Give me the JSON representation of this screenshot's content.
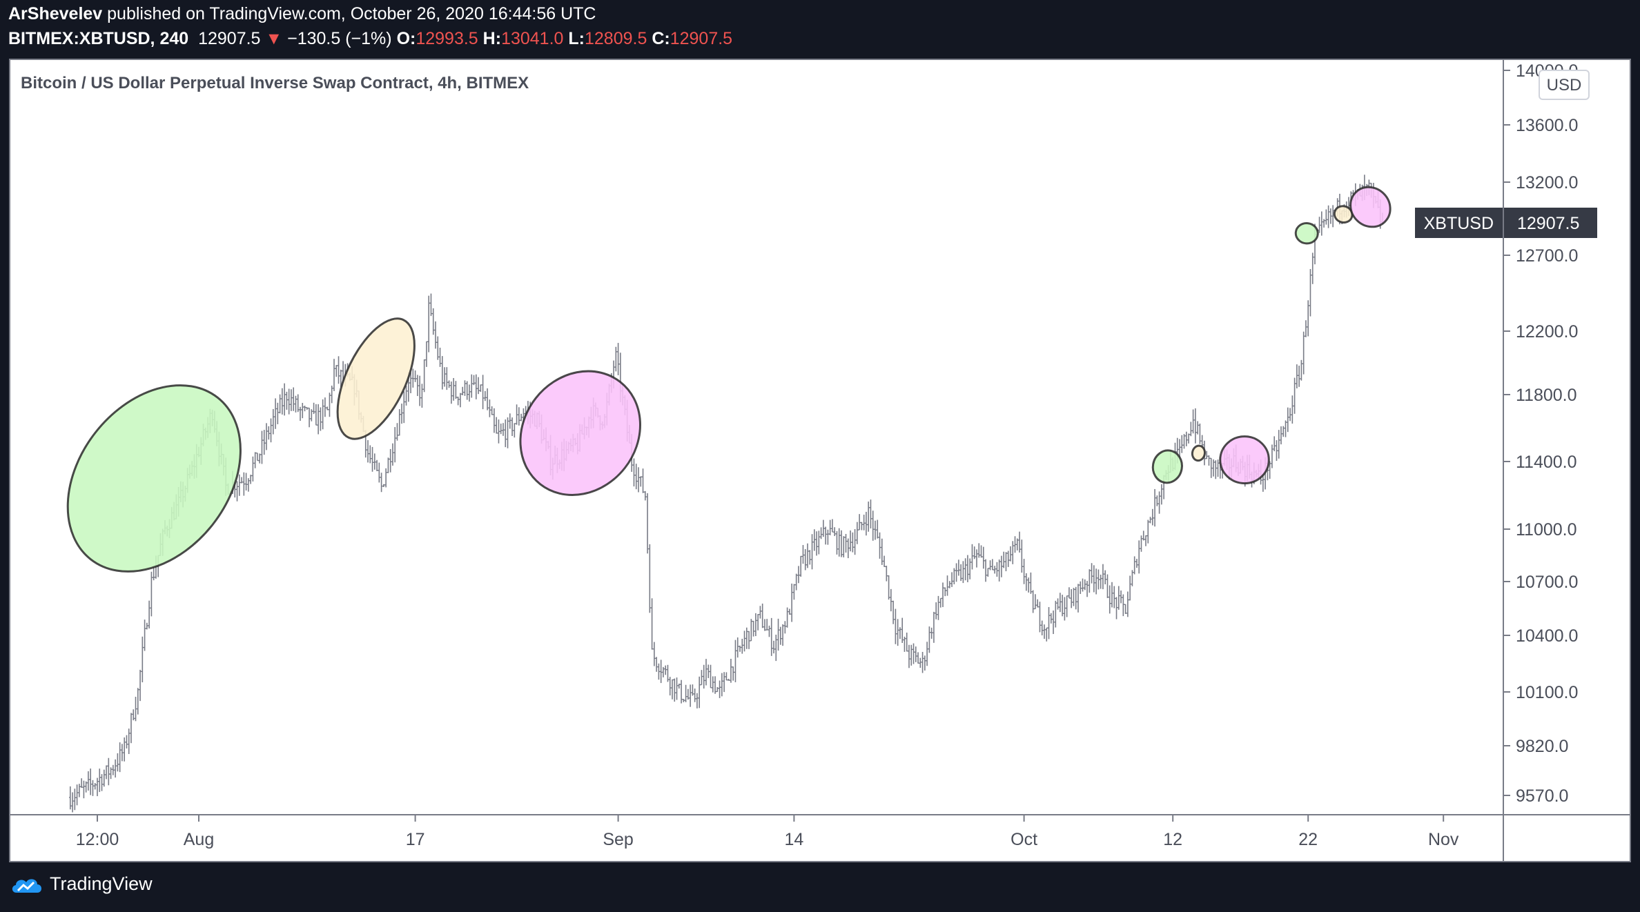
{
  "header": {
    "author": "ArShevelev",
    "published_text": "published on TradingView.com, October 26, 2020 16:44:56 UTC",
    "symbol": "BITMEX:XBTUSD, 240",
    "last": "12907.5",
    "change": "−130.5 (−1%)",
    "o_label": "O:",
    "o_value": "12993.5",
    "h_label": "H:",
    "h_value": "13041.0",
    "l_label": "L:",
    "l_value": "12809.5",
    "c_label": "C:",
    "c_value": "12907.5"
  },
  "chart_title": "Bitcoin / US Dollar Perpetual Inverse Swap Contract, 4h, BITMEX",
  "currency": "USD",
  "price_tag": {
    "symbol": "XBTUSD",
    "value": "12907.5"
  },
  "footer": {
    "brand": "TradingView"
  },
  "colors": {
    "bars": "#787b86",
    "tag_bg": "#363a45",
    "down": "#ef5350",
    "green": "#c8f8c0",
    "cream": "#fdf0d2",
    "pink": "#fac3fa"
  },
  "chart_data": {
    "type": "ohlc",
    "y_ticks": [
      9570,
      9820,
      10100,
      10400,
      10700,
      11000,
      11400,
      11800,
      12200,
      12700,
      13200,
      13600,
      14000
    ],
    "y_tick_labels": [
      "9570.0",
      "9820.0",
      "10100.0",
      "10400.0",
      "10700.0",
      "11000.0",
      "11400.0",
      "11800.0",
      "12200.0",
      "12700.0",
      "13200.0",
      "13600.0",
      "14000.0"
    ],
    "x_ticks": [
      {
        "label": "12:00",
        "day": -7.5
      },
      {
        "label": "Aug",
        "day": 0
      },
      {
        "label": "17",
        "day": 16
      },
      {
        "label": "Sep",
        "day": 31
      },
      {
        "label": "14",
        "day": 44
      },
      {
        "label": "Oct",
        "day": 61
      },
      {
        "label": "12",
        "day": 72
      },
      {
        "label": "22",
        "day": 82
      },
      {
        "label": "Nov",
        "day": 92
      }
    ],
    "price_path": [
      [
        -9.5,
        9560
      ],
      [
        -8,
        9620
      ],
      [
        -6.5,
        9700
      ],
      [
        -5.5,
        9800
      ],
      [
        -4.5,
        10100
      ],
      [
        -4,
        10400
      ],
      [
        -3.5,
        10700
      ],
      [
        -2.5,
        11000
      ],
      [
        -1.5,
        11150
      ],
      [
        -0.5,
        11350
      ],
      [
        1,
        11700
      ],
      [
        2,
        11250
      ],
      [
        3.5,
        11300
      ],
      [
        4.5,
        11450
      ],
      [
        5.5,
        11650
      ],
      [
        6.5,
        11800
      ],
      [
        7.5,
        11700
      ],
      [
        8.5,
        11650
      ],
      [
        9.5,
        11700
      ],
      [
        10,
        11950
      ],
      [
        11.5,
        11850
      ],
      [
        12.5,
        11450
      ],
      [
        13.5,
        11250
      ],
      [
        14.5,
        11550
      ],
      [
        15.5,
        11900
      ],
      [
        16.5,
        11800
      ],
      [
        17,
        12350
      ],
      [
        18,
        11900
      ],
      [
        19,
        11800
      ],
      [
        20,
        11850
      ],
      [
        21,
        11800
      ],
      [
        22,
        11550
      ],
      [
        23,
        11600
      ],
      [
        24,
        11700
      ],
      [
        25,
        11650
      ],
      [
        26,
        11400
      ],
      [
        27,
        11450
      ],
      [
        28,
        11500
      ],
      [
        29,
        11700
      ],
      [
        30,
        11650
      ],
      [
        30.8,
        12050
      ],
      [
        32,
        11400
      ],
      [
        33,
        11200
      ],
      [
        33.5,
        10300
      ],
      [
        34.5,
        10200
      ],
      [
        35.5,
        10100
      ],
      [
        36.5,
        10050
      ],
      [
        37.5,
        10200
      ],
      [
        38.5,
        10100
      ],
      [
        39.5,
        10250
      ],
      [
        40.5,
        10400
      ],
      [
        41.5,
        10500
      ],
      [
        42.5,
        10350
      ],
      [
        43.5,
        10500
      ],
      [
        44.5,
        10800
      ],
      [
        45.5,
        10900
      ],
      [
        46.5,
        11000
      ],
      [
        47.5,
        10900
      ],
      [
        48.5,
        10950
      ],
      [
        49.5,
        11100
      ],
      [
        50.5,
        10850
      ],
      [
        51.5,
        10450
      ],
      [
        52.5,
        10300
      ],
      [
        53.5,
        10250
      ],
      [
        54.5,
        10550
      ],
      [
        55.5,
        10700
      ],
      [
        56.5,
        10750
      ],
      [
        57.5,
        10850
      ],
      [
        58.5,
        10750
      ],
      [
        59.5,
        10800
      ],
      [
        60.5,
        10900
      ],
      [
        61.5,
        10600
      ],
      [
        62.5,
        10450
      ],
      [
        63.5,
        10550
      ],
      [
        64.5,
        10600
      ],
      [
        65.5,
        10700
      ],
      [
        66.5,
        10750
      ],
      [
        67.5,
        10600
      ],
      [
        68.5,
        10550
      ],
      [
        69.5,
        10900
      ],
      [
        70.5,
        11100
      ],
      [
        71.5,
        11350
      ],
      [
        72.5,
        11450
      ],
      [
        73.5,
        11650
      ],
      [
        74.5,
        11400
      ],
      [
        75.5,
        11350
      ],
      [
        76.5,
        11400
      ],
      [
        77.5,
        11350
      ],
      [
        78.5,
        11300
      ],
      [
        79.5,
        11450
      ],
      [
        80.5,
        11650
      ],
      [
        81.5,
        12000
      ],
      [
        82.5,
        12800
      ],
      [
        83.5,
        12950
      ],
      [
        84.5,
        13050
      ],
      [
        85.5,
        13100
      ],
      [
        86.5,
        13150
      ],
      [
        87.5,
        12907.5
      ]
    ],
    "annotations": [
      {
        "shape": "ellipse",
        "color": "green",
        "cx": -3.3,
        "cy": 11300,
        "rx_days": 7.6,
        "ry_px": 108,
        "angle": -52
      },
      {
        "shape": "ellipse",
        "color": "cream",
        "cx": 13.1,
        "cy": 11900,
        "rx_days": 4.8,
        "ry_px": 43,
        "angle": -65
      },
      {
        "shape": "ellipse",
        "color": "pink",
        "cx": 28.2,
        "cy": 11570,
        "rx_days": 4.8,
        "ry_px": 82,
        "angle": -52
      },
      {
        "shape": "ellipse",
        "color": "green",
        "cx": 71.6,
        "cy": 11370,
        "rx_days": 1.2,
        "ry_px": 21,
        "angle": -80
      },
      {
        "shape": "ellipse",
        "color": "cream",
        "cx": 73.9,
        "cy": 11450,
        "rx_days": 0.55,
        "ry_px": 9,
        "angle": -80
      },
      {
        "shape": "ellipse",
        "color": "pink",
        "cx": 77.3,
        "cy": 11410,
        "rx_days": 1.8,
        "ry_px": 34,
        "angle": 0
      },
      {
        "shape": "ellipse",
        "color": "green",
        "cx": 81.9,
        "cy": 12850,
        "rx_days": 0.75,
        "ry_px": 16,
        "angle": -84
      },
      {
        "shape": "ellipse",
        "color": "cream",
        "cx": 84.6,
        "cy": 12980,
        "rx_days": 0.6,
        "ry_px": 13,
        "angle": -72
      },
      {
        "shape": "ellipse",
        "color": "pink",
        "cx": 86.6,
        "cy": 13030,
        "rx_days": 1.4,
        "ry_px": 30,
        "angle": -45
      }
    ],
    "grid": false
  }
}
